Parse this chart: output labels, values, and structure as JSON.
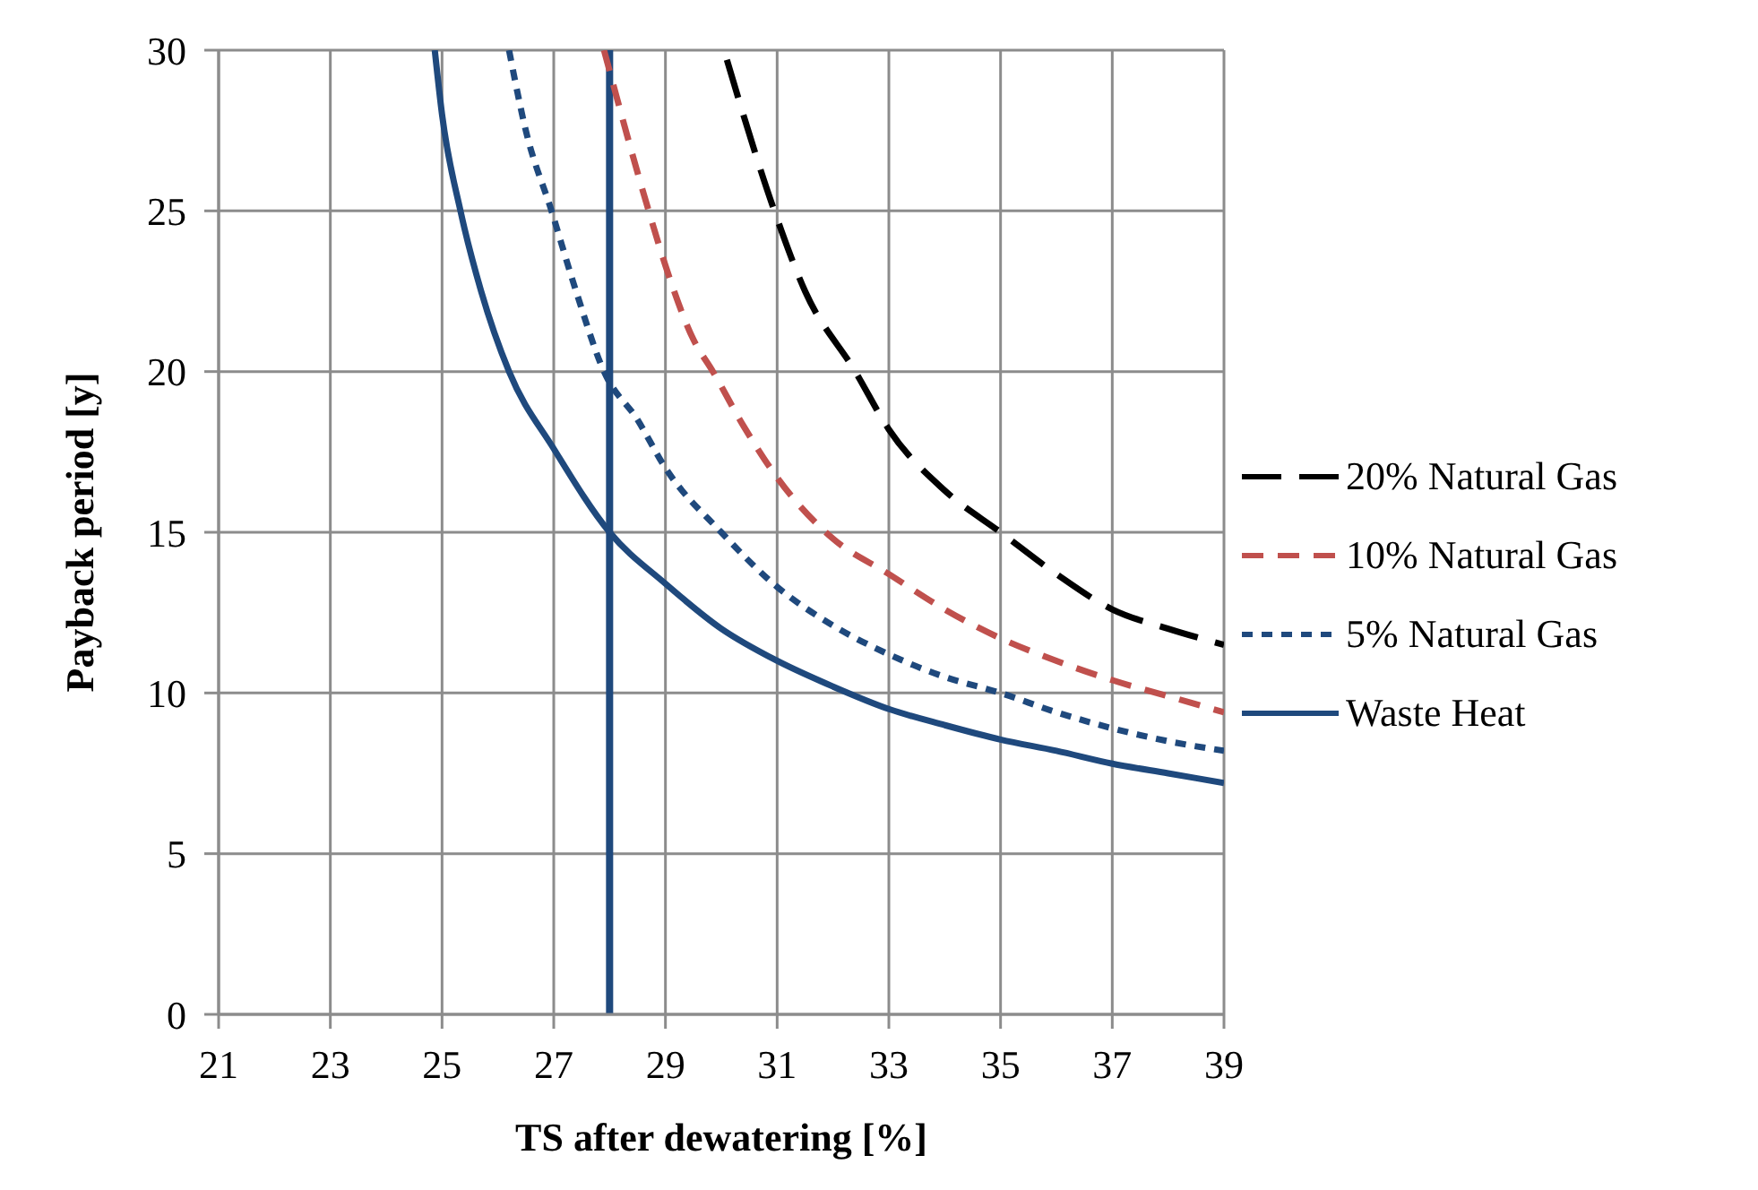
{
  "chart_data": {
    "type": "line",
    "xlabel": "TS after dewatering  [%]",
    "ylabel": "Payback period [y]",
    "xlim": [
      21,
      39
    ],
    "xticks": [
      21,
      23,
      25,
      27,
      29,
      31,
      33,
      35,
      37,
      39
    ],
    "ylim": [
      0,
      30
    ],
    "yticks": [
      0,
      5,
      10,
      15,
      20,
      25,
      30
    ],
    "grid": true,
    "legend": "right",
    "marker": "none",
    "ref_lines": [
      {
        "axis": "x",
        "value": 28,
        "color": "#1f497d",
        "line_style": "solid"
      }
    ],
    "series": [
      {
        "name": "20% Natural Gas",
        "color": "#000000",
        "line_style": "dashed",
        "x": [
          30.1,
          30.95,
          31.5,
          32.4,
          33,
          34,
          35,
          36,
          37,
          38,
          39
        ],
        "values": [
          29.7,
          25,
          22.5,
          20,
          18.2,
          16.3,
          15,
          13.7,
          12.6,
          12,
          11.5
        ]
      },
      {
        "name": "10% Natural Gas",
        "color": "#c0504d",
        "line_style": "dashed",
        "x": [
          27.9,
          28.7,
          29,
          29.5,
          29.85,
          30.4,
          31,
          32,
          33,
          34,
          35,
          36,
          37,
          38,
          39
        ],
        "values": [
          30,
          25,
          23.3,
          21,
          20,
          18.3,
          16.7,
          14.8,
          13.7,
          12.6,
          11.7,
          11,
          10.4,
          9.9,
          9.4
        ]
      },
      {
        "name": "5% Natural Gas",
        "color": "#1f497d",
        "line_style": "dashed",
        "x": [
          26.2,
          26.5,
          26.96,
          27.4,
          27.9,
          28.5,
          29,
          30,
          31,
          32,
          33,
          34,
          35,
          36,
          37,
          38,
          39
        ],
        "values": [
          30,
          27.5,
          25,
          22.5,
          20,
          18.5,
          17,
          15,
          13.3,
          12.1,
          11.2,
          10.5,
          10,
          9.4,
          8.9,
          8.5,
          8.2
        ]
      },
      {
        "name": "Waste Heat",
        "color": "#1f497d",
        "line_style": "solid",
        "x": [
          24.87,
          25,
          25.33,
          25.7,
          26.2,
          27,
          28,
          29,
          30,
          31,
          32,
          33,
          34,
          35,
          36,
          37,
          38,
          39
        ],
        "values": [
          30,
          28,
          25,
          22.5,
          20,
          17.6,
          15,
          13.4,
          12,
          11,
          10.2,
          9.5,
          9,
          8.55,
          8.2,
          7.8,
          7.5,
          7.2
        ]
      }
    ]
  }
}
